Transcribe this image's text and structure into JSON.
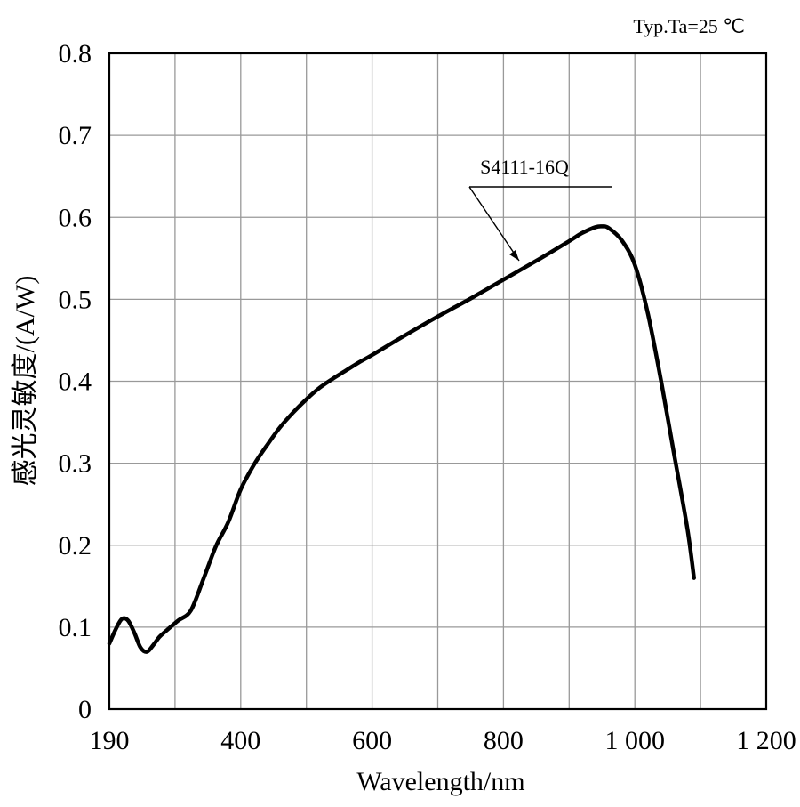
{
  "chart_data": {
    "type": "line",
    "title": "",
    "condition_note": "Typ.Ta=25 ℃",
    "xlabel": "Wavelength/nm",
    "ylabel": "感光灵敏度/(A/W)",
    "xlim": [
      190,
      1200
    ],
    "ylim": [
      0,
      0.8
    ],
    "x_ticks": [
      190,
      400,
      600,
      800,
      1000,
      1200
    ],
    "x_tick_labels": [
      "190",
      "400",
      "600",
      "800",
      "1 000",
      "1 200"
    ],
    "y_ticks": [
      0,
      0.1,
      0.2,
      0.3,
      0.4,
      0.5,
      0.6,
      0.7,
      0.8
    ],
    "y_tick_labels": [
      "0",
      "0.1",
      "0.2",
      "0.3",
      "0.4",
      "0.5",
      "0.6",
      "0.7",
      "0.8"
    ],
    "grid": true,
    "series": [
      {
        "name": "S4111-16Q",
        "x": [
          190,
          200,
          210,
          220,
          230,
          240,
          250,
          260,
          270,
          280,
          300,
          320,
          340,
          360,
          380,
          400,
          420,
          440,
          460,
          480,
          500,
          520,
          540,
          560,
          580,
          600,
          650,
          700,
          750,
          800,
          850,
          900,
          920,
          940,
          950,
          960,
          980,
          1000,
          1020,
          1040,
          1060,
          1080,
          1090
        ],
        "y": [
          0.08,
          0.097,
          0.11,
          0.108,
          0.093,
          0.075,
          0.07,
          0.078,
          0.088,
          0.095,
          0.108,
          0.12,
          0.158,
          0.198,
          0.228,
          0.268,
          0.298,
          0.322,
          0.344,
          0.362,
          0.378,
          0.392,
          0.403,
          0.413,
          0.423,
          0.432,
          0.456,
          0.479,
          0.501,
          0.524,
          0.547,
          0.571,
          0.581,
          0.588,
          0.589,
          0.587,
          0.572,
          0.542,
          0.482,
          0.4,
          0.31,
          0.22,
          0.16
        ]
      }
    ]
  }
}
